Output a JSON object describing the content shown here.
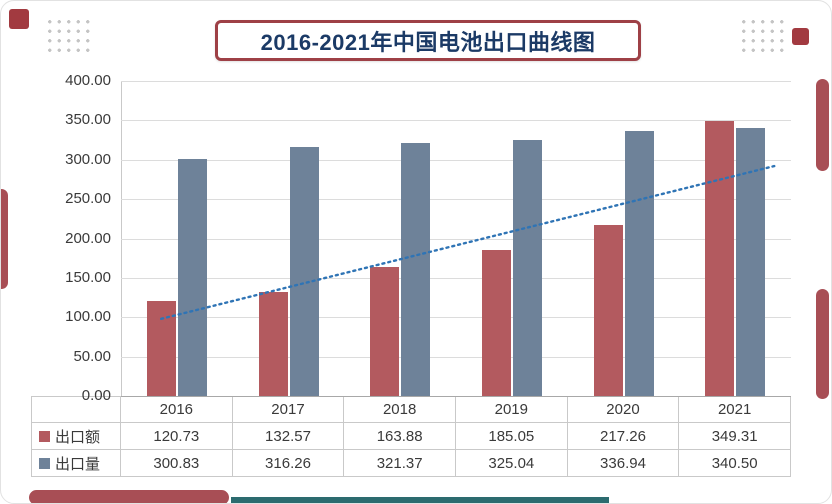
{
  "title": "2016-2021年中国电池出口曲线图",
  "chart_data": {
    "type": "bar",
    "title": "2016-2021年中国电池出口曲线图",
    "categories": [
      "2016",
      "2017",
      "2018",
      "2019",
      "2020",
      "2021"
    ],
    "series": [
      {
        "name": "出口额",
        "color": "#b35a5f",
        "values": [
          120.73,
          132.57,
          163.88,
          185.05,
          217.26,
          349.31
        ]
      },
      {
        "name": "出口量",
        "color": "#6e8299",
        "values": [
          300.83,
          316.26,
          321.37,
          325.04,
          336.94,
          340.5
        ]
      }
    ],
    "trendline": {
      "color": "#2f74b5",
      "style": "dotted",
      "x1_frac": 0.06,
      "value1": 98,
      "x2_frac": 0.975,
      "value2": 292
    },
    "ylim": [
      0,
      400
    ],
    "yticks": [
      "400.00",
      "350.00",
      "300.00",
      "250.00",
      "200.00",
      "150.00",
      "100.00",
      "50.00",
      "0.00"
    ],
    "grid": true,
    "legend_position": "table-left"
  },
  "table": {
    "corner": "",
    "years": [
      "2016",
      "2017",
      "2018",
      "2019",
      "2020",
      "2021"
    ],
    "rows": [
      {
        "label": "出口额",
        "swatch": "#b35a5f",
        "values": [
          "120.73",
          "132.57",
          "163.88",
          "185.05",
          "217.26",
          "349.31"
        ]
      },
      {
        "label": "出口量",
        "swatch": "#6e8299",
        "values": [
          "300.83",
          "316.26",
          "321.37",
          "325.04",
          "336.94",
          "340.50"
        ]
      }
    ]
  },
  "colors": {
    "title_text": "#1b3a66",
    "title_border": "#9e4046",
    "bar_export_value": "#b35a5f",
    "bar_export_volume": "#6e8299",
    "trend_line": "#2f74b5",
    "accent_maroon": "#a84e55",
    "accent_dark_red": "#a23a40",
    "accent_teal": "#2c6b6f"
  }
}
